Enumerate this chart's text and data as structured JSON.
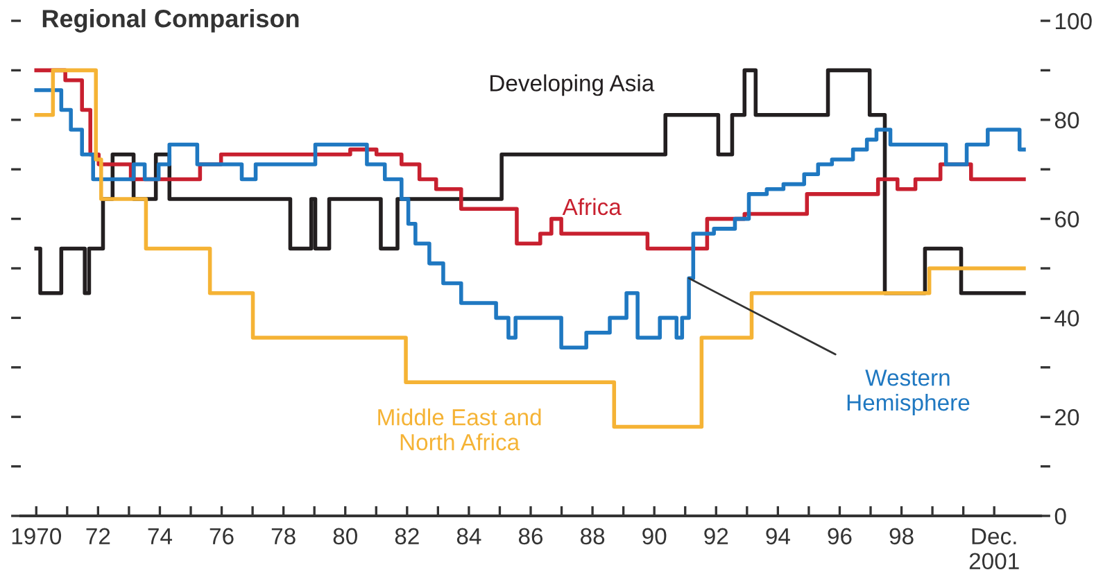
{
  "chart_data": {
    "type": "step",
    "title": "Regional Comparison",
    "xlim": [
      1969.5,
      2002.5
    ],
    "xticks": [
      1970,
      {
        "value": 1971,
        "label": null
      },
      {
        "value": 1972,
        "label": "72"
      },
      {
        "value": 1973,
        "label": null
      },
      {
        "value": 1974,
        "label": "74"
      },
      {
        "value": 1975,
        "label": null
      },
      {
        "value": 1976,
        "label": "76"
      },
      {
        "value": 1977,
        "label": null
      },
      {
        "value": 1978,
        "label": "78"
      },
      {
        "value": 1979,
        "label": null
      },
      {
        "value": 1980,
        "label": "80"
      },
      {
        "value": 1981,
        "label": null
      },
      {
        "value": 1982,
        "label": "82"
      },
      {
        "value": 1983,
        "label": null
      },
      {
        "value": 1984,
        "label": "84"
      },
      {
        "value": 1985,
        "label": null
      },
      {
        "value": 1986,
        "label": "86"
      },
      {
        "value": 1987,
        "label": null
      },
      {
        "value": 1988,
        "label": "88"
      },
      {
        "value": 1989,
        "label": null
      },
      {
        "value": 1990,
        "label": "90"
      },
      {
        "value": 1991,
        "label": null
      },
      {
        "value": 1992,
        "label": "92"
      },
      {
        "value": 1993,
        "label": null
      },
      {
        "value": 1994,
        "label": "94"
      },
      {
        "value": 1995,
        "label": null
      },
      {
        "value": 1996,
        "label": "96"
      },
      {
        "value": 1997,
        "label": null
      },
      {
        "value": 1998,
        "label": "98"
      },
      {
        "value": 1999,
        "label": null
      },
      {
        "value": 2000,
        "label": null
      },
      {
        "value": 2001,
        "label": "Dec.\n2001"
      }
    ],
    "ylim": [
      0,
      100
    ],
    "yticks": [
      0,
      {
        "value": 10,
        "label": null
      },
      20,
      {
        "value": 30,
        "label": null
      },
      40,
      {
        "value": 50,
        "label": null
      },
      60,
      {
        "value": 70,
        "label": null
      },
      80,
      {
        "value": 90,
        "label": null
      },
      100
    ],
    "grid": false,
    "legend": false,
    "series": [
      {
        "name": "Developing Asia",
        "color": "#231f20",
        "x": [
          1970.0,
          1970.13,
          1970.81,
          1971.57,
          1971.71,
          1972.16,
          1972.47,
          1973.15,
          1973.87,
          1974.31,
          1978.22,
          1978.9,
          1979.03,
          1979.48,
          1981.15,
          1981.69,
          1985.06,
          1990.36,
          1992.07,
          1992.52,
          1992.92,
          1993.28,
          1995.62,
          1996.97,
          1997.46,
          1998.76,
          1999.93,
          2001.96
        ],
        "values": [
          54,
          45,
          54,
          45,
          54,
          64,
          73,
          64,
          73,
          64,
          54,
          64,
          54,
          64,
          54,
          64,
          73,
          81,
          73,
          81,
          90,
          81,
          90,
          81,
          45,
          54,
          45,
          45
        ]
      },
      {
        "name": "Africa",
        "color": "#c8202f",
        "x": [
          1970.0,
          1970.94,
          1971.48,
          1971.75,
          1972.02,
          1973.06,
          1975.3,
          1975.98,
          1980.16,
          1981.01,
          1981.82,
          1982.4,
          1982.94,
          1983.75,
          1985.55,
          1986.31,
          1986.67,
          1986.99,
          1989.78,
          1991.71,
          1992.92,
          1994.94,
          1997.24,
          1997.87,
          1998.45,
          1999.26,
          2000.25,
          2001.96
        ],
        "values": [
          90,
          88,
          82,
          73,
          71,
          68,
          71,
          73,
          74,
          73,
          71,
          68,
          66,
          62,
          55,
          57,
          60,
          57,
          54,
          60,
          61,
          65,
          68,
          66,
          68,
          71,
          68,
          68
        ]
      },
      {
        "name": "Western\nHemisphere",
        "color": "#1f78c1",
        "x": [
          1970.0,
          1970.81,
          1971.12,
          1971.48,
          1971.84,
          1973.15,
          1973.51,
          1973.96,
          1974.31,
          1975.21,
          1976.65,
          1977.1,
          1979.03,
          1980.7,
          1981.28,
          1981.82,
          1982.04,
          1982.27,
          1982.72,
          1983.17,
          1983.75,
          1984.88,
          1985.28,
          1985.51,
          1986.99,
          1987.8,
          1988.56,
          1989.1,
          1989.46,
          1990.18,
          1990.72,
          1990.9,
          1991.12,
          1991.26,
          1991.93,
          1992.61,
          1993.06,
          1993.64,
          1994.18,
          1994.85,
          1995.3,
          1995.75,
          1996.43,
          1996.88,
          1997.19,
          1997.64,
          1999.44,
          2000.11,
          2000.79,
          2001.82,
          2001.96
        ],
        "values": [
          86,
          82,
          78,
          73,
          68,
          71,
          68,
          71,
          75,
          71,
          68,
          71,
          75,
          71,
          68,
          64,
          59,
          55,
          51,
          47,
          43,
          40,
          36,
          40,
          34,
          37,
          40,
          45,
          36,
          40,
          36,
          40,
          48,
          57,
          58,
          60,
          65,
          66,
          67,
          69,
          71,
          72,
          74,
          76,
          78,
          75,
          71,
          75,
          78,
          74,
          74
        ]
      },
      {
        "name": "Middle East and\nNorth Africa",
        "color": "#f5b335",
        "x": [
          1970.0,
          1970.54,
          1971.93,
          1972.1,
          1973.55,
          1975.62,
          1977.01,
          1981.96,
          1988.7,
          1991.53,
          1993.15,
          1998.9,
          2001.96
        ],
        "values": [
          81,
          90,
          72,
          64,
          54,
          45,
          36,
          27,
          18,
          36,
          45,
          50,
          50
        ]
      }
    ]
  }
}
